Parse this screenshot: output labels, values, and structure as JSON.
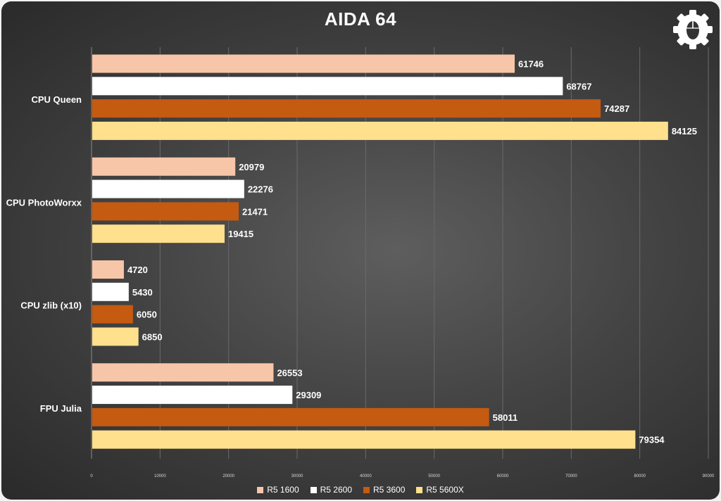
{
  "chart_data": {
    "type": "bar",
    "orientation": "horizontal",
    "title": "AIDA 64",
    "categories": [
      "CPU Queen",
      "CPU PhotoWorxx",
      "CPU zlib (x10)",
      "FPU Julia"
    ],
    "series": [
      {
        "name": "R5 1600",
        "color": "#f7c6a8",
        "values": [
          61746,
          20979,
          4720,
          26553
        ]
      },
      {
        "name": "R5 2600",
        "color": "#ffffff",
        "values": [
          68767,
          22276,
          5430,
          29309
        ]
      },
      {
        "name": "R5 3600",
        "color": "#c55a11",
        "values": [
          74287,
          21471,
          6050,
          58011
        ]
      },
      {
        "name": "R5 5600X",
        "color": "#ffe08c",
        "values": [
          84125,
          19415,
          6850,
          79354
        ]
      }
    ],
    "xlim": [
      0,
      90000
    ],
    "xticks": [
      0,
      10000,
      20000,
      30000,
      40000,
      50000,
      60000,
      70000,
      80000,
      90000
    ],
    "grid": true,
    "legend_position": "bottom"
  },
  "colors": {
    "label_text": "#ffffff",
    "gridline": "#6a6a6a"
  },
  "icons": {
    "logo": "gear-mouse-icon"
  }
}
